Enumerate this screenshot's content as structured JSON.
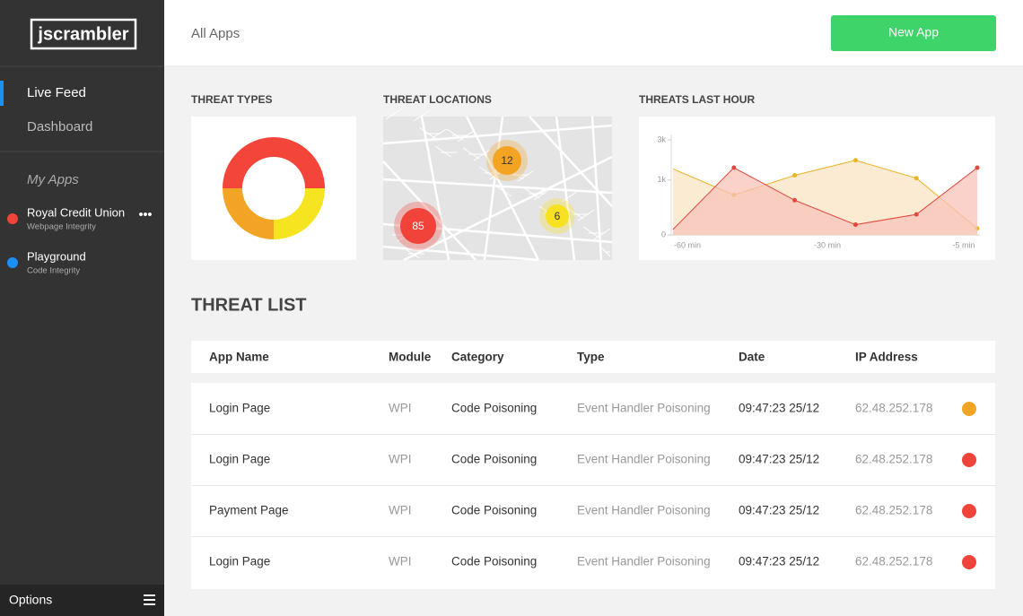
{
  "sidebar": {
    "logo": "jscrambler",
    "nav": [
      "Live Feed",
      "Dashboard"
    ],
    "apps_heading": "My Apps",
    "apps": [
      {
        "name": "Royal Credit Union",
        "module": "Webpage Integrity",
        "color": "#f0433a"
      },
      {
        "name": "Playground",
        "module": "Code Integrity",
        "color": "#1b8ff2"
      }
    ],
    "options": "Options"
  },
  "header": {
    "title": "All Apps",
    "button": "New App"
  },
  "chart_data": [
    {
      "type": "donut",
      "title": "THREAT TYPES",
      "values": [
        50,
        25,
        25
      ],
      "colors": [
        "#f4453a",
        "#f5e41f",
        "#f2a524"
      ]
    },
    {
      "type": "area",
      "title": "THREATS LAST HOUR",
      "y_scale": "sqrt",
      "ylim": [
        0,
        3000
      ],
      "yticks": [
        0,
        {
          "value": 1000,
          "label": "1k"
        },
        {
          "value": 3000,
          "label": "3k"
        }
      ],
      "x_labels": [
        "-60 min",
        "-30 min",
        "-5 min"
      ],
      "series": [
        {
          "color": "#e9b325",
          "fill": "#fbe4c4",
          "values": [
            1450,
            530,
            1180,
            1850,
            1070,
            14
          ]
        },
        {
          "color": "#e2483f",
          "fill": "#f8c3b8",
          "values": [
            10,
            1500,
            400,
            35,
            140,
            1500
          ]
        }
      ]
    }
  ],
  "map": {
    "title": "THREAT LOCATIONS",
    "clusters": [
      {
        "count": 85,
        "color": "#f2433a"
      },
      {
        "count": 12,
        "color": "#f3a423"
      },
      {
        "count": 6,
        "color": "#f7e221"
      }
    ]
  },
  "threat_list": {
    "title": "THREAT LIST",
    "columns": [
      "App Name",
      "Module",
      "Category",
      "Type",
      "Date",
      "IP Address"
    ],
    "rows": [
      [
        "Login Page",
        "WPI",
        "Code Poisoning",
        "Event Handler Poisoning",
        "09:47:23 25/12",
        "62.48.252.178"
      ],
      [
        "Login Page",
        "WPI",
        "Code Poisoning",
        "Event Handler Poisoning",
        "09:47:23 25/12",
        "62.48.252.178"
      ],
      [
        "Payment Page",
        "WPI",
        "Code Poisoning",
        "Event Handler Poisoning",
        "09:47:23 25/12",
        "62.48.252.178"
      ],
      [
        "Login Page",
        "WPI",
        "Code Poisoning",
        "Event Handler Poisoning",
        "09:47:23 25/12",
        "62.48.252.178"
      ]
    ],
    "status_colors": [
      "#f2a524",
      "#f0433a",
      "#f0433a",
      "#f0433a"
    ]
  }
}
